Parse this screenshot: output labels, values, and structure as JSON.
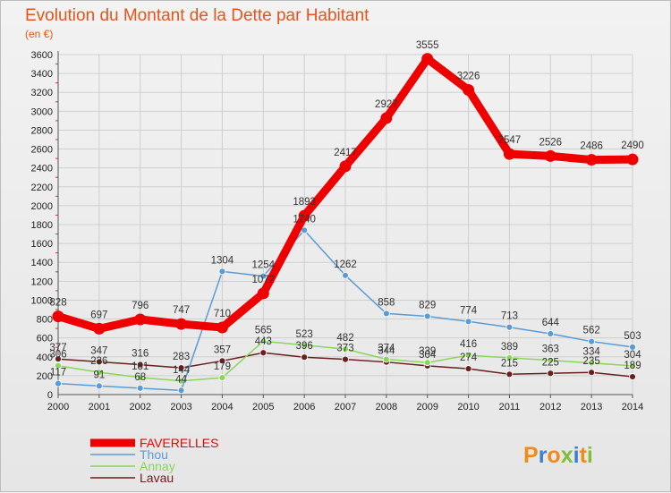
{
  "chart_data": {
    "type": "line",
    "title": "Evolution du Montant de la Dette par Habitant",
    "subtitle": "(en €)",
    "x": [
      "2000",
      "2001",
      "2002",
      "2003",
      "2004",
      "2005",
      "2006",
      "2007",
      "2008",
      "2009",
      "2010",
      "2011",
      "2012",
      "2013",
      "2014"
    ],
    "yticks": [
      0,
      200,
      400,
      600,
      800,
      1000,
      1200,
      1400,
      1600,
      1800,
      2000,
      2200,
      2400,
      2600,
      2800,
      3000,
      3200,
      3400,
      3600
    ],
    "ylim": [
      0,
      3600
    ],
    "grid": true,
    "legend_position": "bottom-left",
    "series": [
      {
        "name": "FAVERELLES",
        "color": "#ee0000",
        "values": [
          828,
          697,
          796,
          747,
          710,
          1072,
          1893,
          2417,
          2927,
          3555,
          3226,
          2547,
          2526,
          2486,
          2490
        ]
      },
      {
        "name": "Thou",
        "color": "#5b9bd5",
        "values": [
          117,
          91,
          68,
          44,
          1304,
          1254,
          1740,
          1262,
          858,
          829,
          774,
          713,
          644,
          562,
          503
        ]
      },
      {
        "name": "Annay",
        "color": "#8ad55a",
        "values": [
          306,
          236,
          181,
          144,
          179,
          565,
          523,
          482,
          374,
          339,
          416,
          389,
          363,
          334,
          304
        ]
      },
      {
        "name": "Lavau",
        "color": "#6b1e1e",
        "values": [
          377,
          347,
          316,
          283,
          357,
          443,
          396,
          373,
          344,
          304,
          274,
          215,
          225,
          235,
          189
        ]
      }
    ]
  },
  "logo": {
    "text": "Proxiti"
  }
}
